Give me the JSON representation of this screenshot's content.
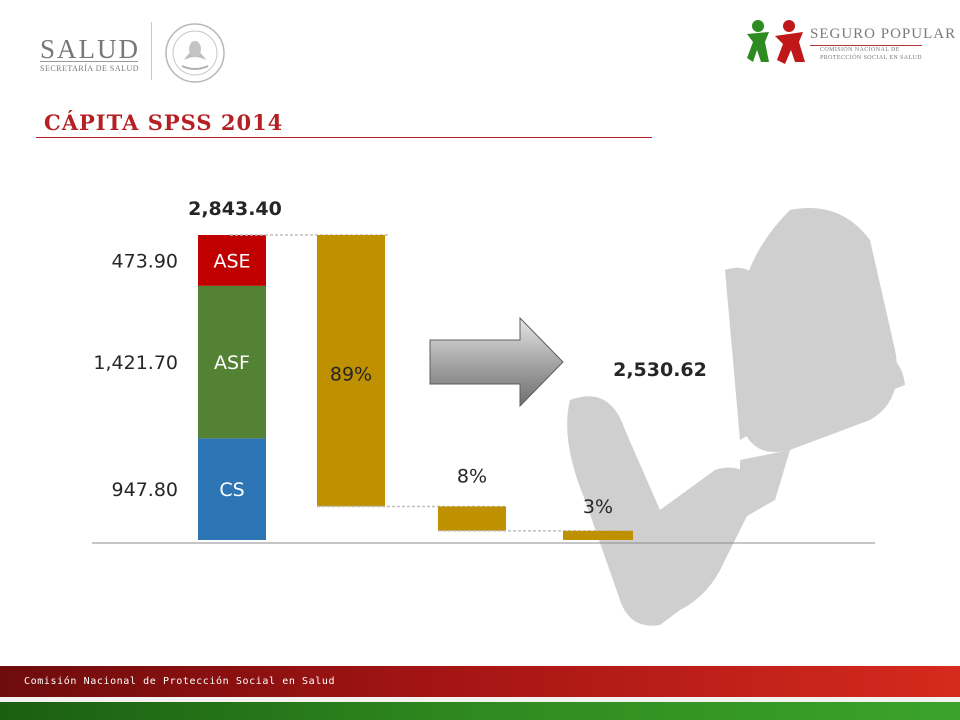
{
  "header": {
    "salud_logo": {
      "word": "SALUD",
      "sub": "SECRETARÍA DE SALUD"
    },
    "seguro_popular_logo": {
      "title": "SEGURO POPULAR",
      "sub_line1": "COMISIÓN NACIONAL DE",
      "sub_line2": "PROTECCIÓN SOCIAL EN SALUD"
    }
  },
  "title": "CÁPITA SPSS 2014",
  "footer": {
    "text": "Comisión Nacional de Protección Social en Salud"
  },
  "colors": {
    "CS": "#2e75b6",
    "ASF": "#548235",
    "ASE": "#c00000",
    "gold": "#bf9000",
    "title_red": "#b52025"
  },
  "chart_data": {
    "type": "bar",
    "total": "2,843.40",
    "result": "2,530.62",
    "stacked_bar": {
      "segments": [
        {
          "name": "CS",
          "value": 947.8,
          "value_label": "947.80"
        },
        {
          "name": "ASF",
          "value": 1421.7,
          "value_label": "1,421.70"
        },
        {
          "name": "ASE",
          "value": 473.9,
          "value_label": "473.90"
        }
      ]
    },
    "waterfall": [
      {
        "label": "89%",
        "value": 89
      },
      {
        "label": "8%",
        "value": 8
      },
      {
        "label": "3%",
        "value": 3
      }
    ]
  }
}
